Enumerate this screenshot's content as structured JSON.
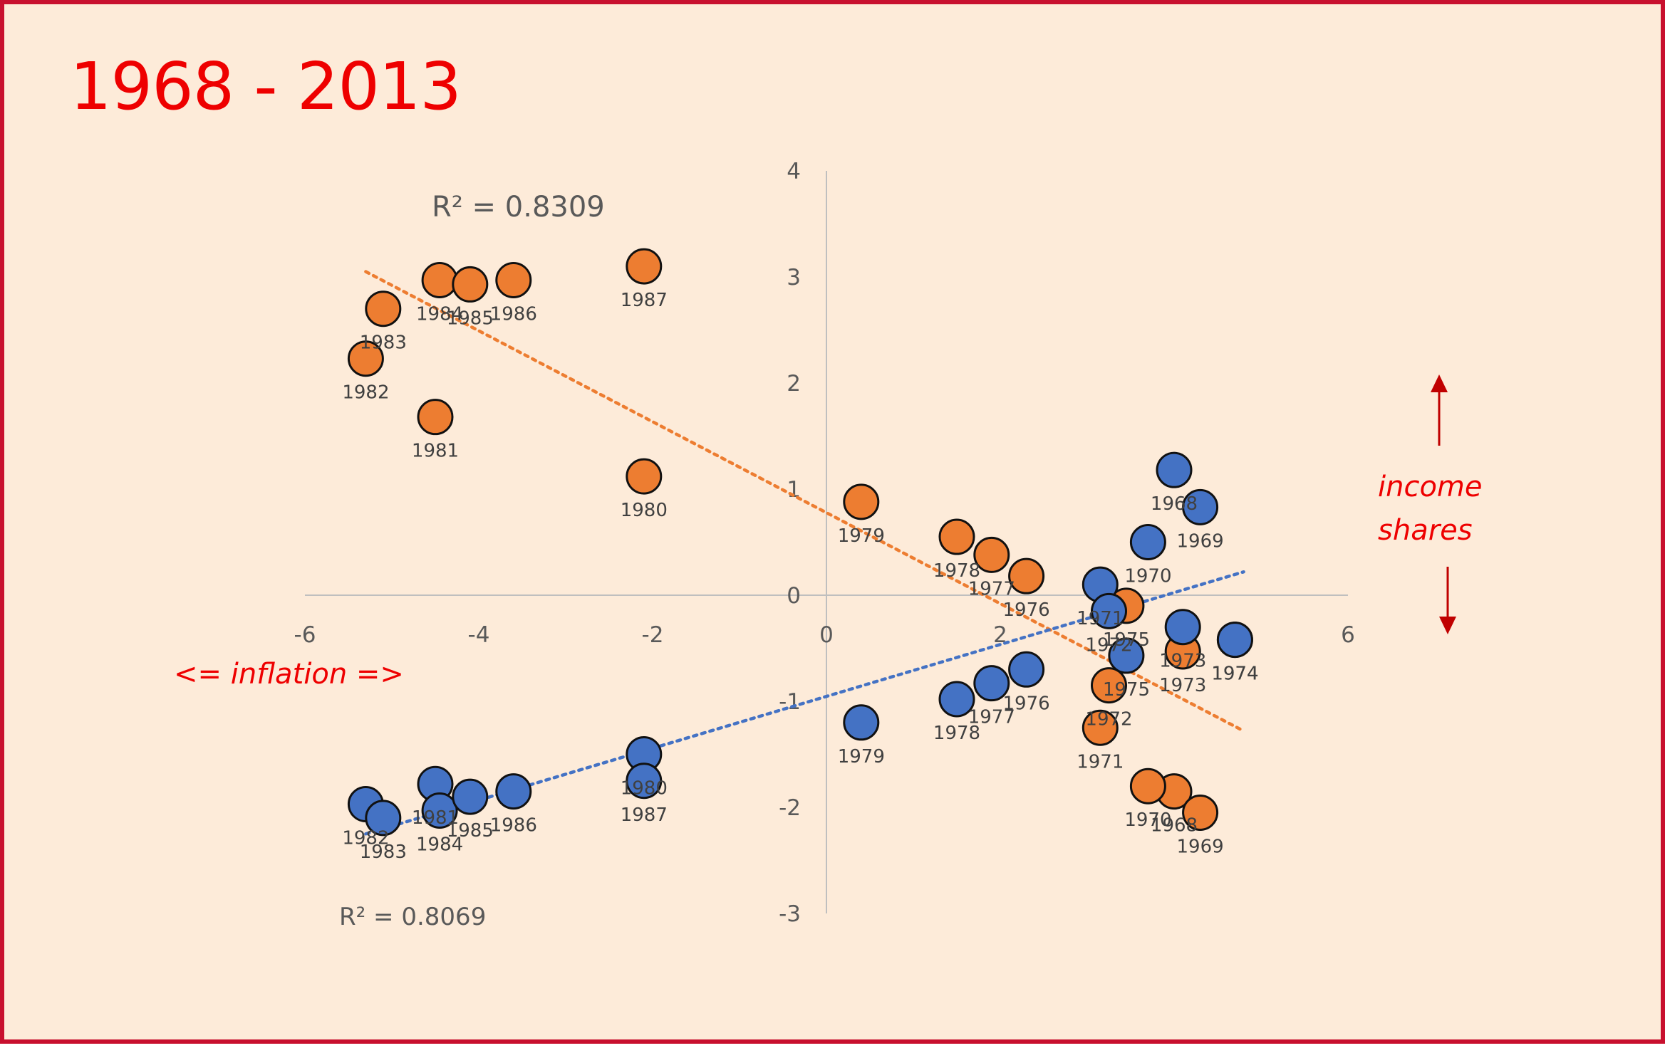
{
  "title": "1968 - 2013",
  "annotations": {
    "x_label": "<= inflation =>",
    "y_label_line1": "income",
    "y_label_line2": "shares",
    "r2_orange": "R² = 0.8309",
    "r2_blue": "R² = 0.8069"
  },
  "colors": {
    "background": "#fdebd9",
    "border": "#c8102e",
    "orange": "#ed7d31",
    "blue": "#4472c4",
    "annotation": "#ee0000"
  },
  "chart_data": {
    "type": "scatter",
    "xlim": [
      -6,
      6
    ],
    "ylim": [
      -3,
      4
    ],
    "x_ticks": [
      -6,
      -4,
      -2,
      0,
      2,
      4,
      6
    ],
    "y_ticks": [
      -3,
      -2,
      -1,
      0,
      1,
      2,
      3,
      4
    ],
    "grid": false,
    "legend": "none",
    "series": [
      {
        "color": "orange",
        "trendline": {
          "type": "linear",
          "x": [
            -5.3,
            4.8
          ],
          "y": [
            3.05,
            -1.28
          ],
          "r2": 0.8309
        },
        "points": [
          {
            "year": "1968",
            "x": 4.0,
            "y": -1.85
          },
          {
            "year": "1969",
            "x": 4.3,
            "y": -2.05
          },
          {
            "year": "1970",
            "x": 3.7,
            "y": -1.8
          },
          {
            "year": "1971",
            "x": 3.15,
            "y": -1.25
          },
          {
            "year": "1972",
            "x": 3.25,
            "y": -0.85
          },
          {
            "year": "1973",
            "x": 4.1,
            "y": -0.53
          },
          {
            "year": "1974",
            "x": 4.7,
            "y": -0.42
          },
          {
            "year": "1975",
            "x": 3.45,
            "y": -0.1
          },
          {
            "year": "1976",
            "x": 2.3,
            "y": 0.18
          },
          {
            "year": "1977",
            "x": 1.9,
            "y": 0.38
          },
          {
            "year": "1978",
            "x": 1.5,
            "y": 0.55
          },
          {
            "year": "1979",
            "x": 0.4,
            "y": 0.88
          },
          {
            "year": "1980",
            "x": -2.1,
            "y": 1.12
          },
          {
            "year": "1981",
            "x": -4.5,
            "y": 1.68
          },
          {
            "year": "1982",
            "x": -5.3,
            "y": 2.23
          },
          {
            "year": "1983",
            "x": -5.1,
            "y": 2.7
          },
          {
            "year": "1984",
            "x": -4.45,
            "y": 2.97
          },
          {
            "year": "1985",
            "x": -4.1,
            "y": 2.93
          },
          {
            "year": "1986",
            "x": -3.6,
            "y": 2.97
          },
          {
            "year": "1987",
            "x": -2.1,
            "y": 3.1
          }
        ]
      },
      {
        "color": "blue",
        "trendline": {
          "type": "linear",
          "x": [
            -5.3,
            4.8
          ],
          "y": [
            -2.25,
            0.22
          ],
          "r2": 0.8069
        },
        "points": [
          {
            "year": "1968",
            "x": 4.0,
            "y": 1.18
          },
          {
            "year": "1969",
            "x": 4.3,
            "y": 0.83
          },
          {
            "year": "1970",
            "x": 3.7,
            "y": 0.5
          },
          {
            "year": "1971",
            "x": 3.15,
            "y": 0.1
          },
          {
            "year": "1972",
            "x": 3.25,
            "y": -0.15
          },
          {
            "year": "1973",
            "x": 4.1,
            "y": -0.3
          },
          {
            "year": "1974",
            "x": 4.7,
            "y": -0.42
          },
          {
            "year": "1975",
            "x": 3.45,
            "y": -0.57
          },
          {
            "year": "1976",
            "x": 2.3,
            "y": -0.7
          },
          {
            "year": "1977",
            "x": 1.9,
            "y": -0.83
          },
          {
            "year": "1978",
            "x": 1.5,
            "y": -0.98
          },
          {
            "year": "1979",
            "x": 0.4,
            "y": -1.2
          },
          {
            "year": "1980",
            "x": -2.1,
            "y": -1.5
          },
          {
            "year": "1981",
            "x": -4.5,
            "y": -1.78
          },
          {
            "year": "1982",
            "x": -5.3,
            "y": -1.97
          },
          {
            "year": "1983",
            "x": -5.1,
            "y": -2.1
          },
          {
            "year": "1984",
            "x": -4.45,
            "y": -2.03
          },
          {
            "year": "1985",
            "x": -4.1,
            "y": -1.9
          },
          {
            "year": "1986",
            "x": -3.6,
            "y": -1.85
          },
          {
            "year": "1987",
            "x": -2.1,
            "y": -1.75
          }
        ]
      }
    ]
  }
}
